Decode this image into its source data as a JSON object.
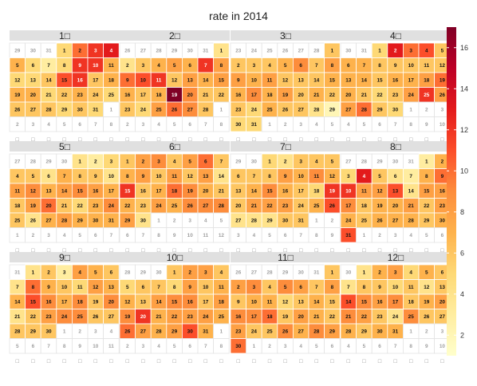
{
  "chart_data": {
    "type": "heatmap",
    "title": "rate in 2014",
    "year": 2014,
    "month_labels": [
      "1□",
      "2□",
      "3□",
      "4□",
      "5□",
      "6□",
      "7□",
      "8□",
      "9□",
      "10□",
      "11□",
      "12□"
    ],
    "weekday_labels": [
      "□",
      "□",
      "□",
      "□",
      "□",
      "□",
      "□"
    ],
    "colorbar": {
      "min": 1,
      "max": 17,
      "ticks": [
        2,
        4,
        6,
        8,
        10,
        12,
        14,
        16
      ]
    },
    "color_scale": [
      "#ffffcc",
      "#ffeda0",
      "#fed976",
      "#feb24c",
      "#fd8d3c",
      "#fc4e2a",
      "#e31a1c",
      "#bd0026",
      "#800026"
    ],
    "values": [
      [
        5,
        10,
        12,
        13,
        7,
        5,
        3,
        5,
        12,
        12,
        7,
        5,
        5,
        6,
        11,
        12,
        6,
        7,
        7,
        7,
        5,
        6,
        7,
        6,
        5,
        6,
        6,
        6,
        5,
        6,
        5
      ],
      [
        4,
        4,
        6,
        7,
        8,
        7,
        12,
        8,
        10,
        11,
        12,
        6,
        8,
        7,
        8,
        7,
        6,
        7,
        17,
        9,
        6,
        6,
        6,
        5,
        8,
        10,
        9,
        6
      ],
      [
        6,
        6,
        6,
        6,
        7,
        9,
        6,
        8,
        8,
        7,
        8,
        6,
        6,
        6,
        7,
        7,
        9,
        7,
        8,
        6,
        7,
        6,
        6,
        5,
        7,
        6,
        6,
        4,
        2,
        5,
        5
      ],
      [
        5,
        13,
        10,
        11,
        6,
        7,
        7,
        6,
        6,
        6,
        6,
        6,
        7,
        7,
        6,
        7,
        7,
        8,
        10,
        7,
        6,
        5,
        6,
        8,
        12,
        8,
        8,
        10,
        6,
        5
      ],
      [
        4,
        3,
        5,
        6,
        6,
        4,
        7,
        6,
        6,
        4,
        8,
        9,
        7,
        8,
        9,
        8,
        7,
        6,
        8,
        10,
        6,
        5,
        7,
        9,
        6,
        4,
        7,
        8,
        7,
        7,
        7
      ],
      [
        6,
        8,
        9,
        6,
        8,
        10,
        6,
        7,
        8,
        6,
        8,
        6,
        8,
        4,
        12,
        6,
        7,
        10,
        9,
        7,
        6,
        7,
        6,
        8,
        7,
        9,
        9,
        9,
        8,
        4
      ],
      [
        5,
        4,
        6,
        6,
        6,
        6,
        6,
        6,
        8,
        7,
        9,
        7,
        6,
        7,
        9,
        7,
        6,
        5,
        12,
        6,
        8,
        8,
        8,
        6,
        7,
        11,
        4,
        4,
        4,
        6,
        6
      ],
      [
        3,
        7,
        5,
        13,
        6,
        4,
        3,
        7,
        10,
        12,
        8,
        8,
        11,
        4,
        8,
        8,
        9,
        6,
        7,
        7,
        8,
        6,
        8,
        7,
        6,
        7,
        7,
        7,
        6,
        7,
        11
      ],
      [
        4,
        6,
        3,
        8,
        7,
        6,
        4,
        10,
        7,
        6,
        5,
        8,
        7,
        7,
        11,
        9,
        7,
        9,
        6,
        9,
        4,
        6,
        8,
        9,
        9,
        6,
        6,
        6,
        6,
        6
      ],
      [
        6,
        8,
        8,
        6,
        5,
        6,
        6,
        5,
        8,
        6,
        7,
        7,
        6,
        8,
        9,
        9,
        6,
        8,
        9,
        12,
        7,
        8,
        8,
        8,
        7,
        10,
        8,
        7,
        8,
        11,
        7
      ],
      [
        6,
        8,
        9,
        6,
        9,
        8,
        6,
        8,
        6,
        7,
        7,
        5,
        6,
        7,
        6,
        9,
        9,
        10,
        6,
        8,
        7,
        6,
        8,
        6,
        6,
        9,
        7,
        9,
        8,
        10
      ],
      [
        4,
        7,
        8,
        5,
        7,
        6,
        4,
        6,
        6,
        5,
        6,
        4,
        6,
        11,
        9,
        8,
        9,
        6,
        7,
        8,
        9,
        8,
        6,
        4,
        9,
        6,
        6,
        7,
        6,
        7,
        7
      ]
    ]
  }
}
